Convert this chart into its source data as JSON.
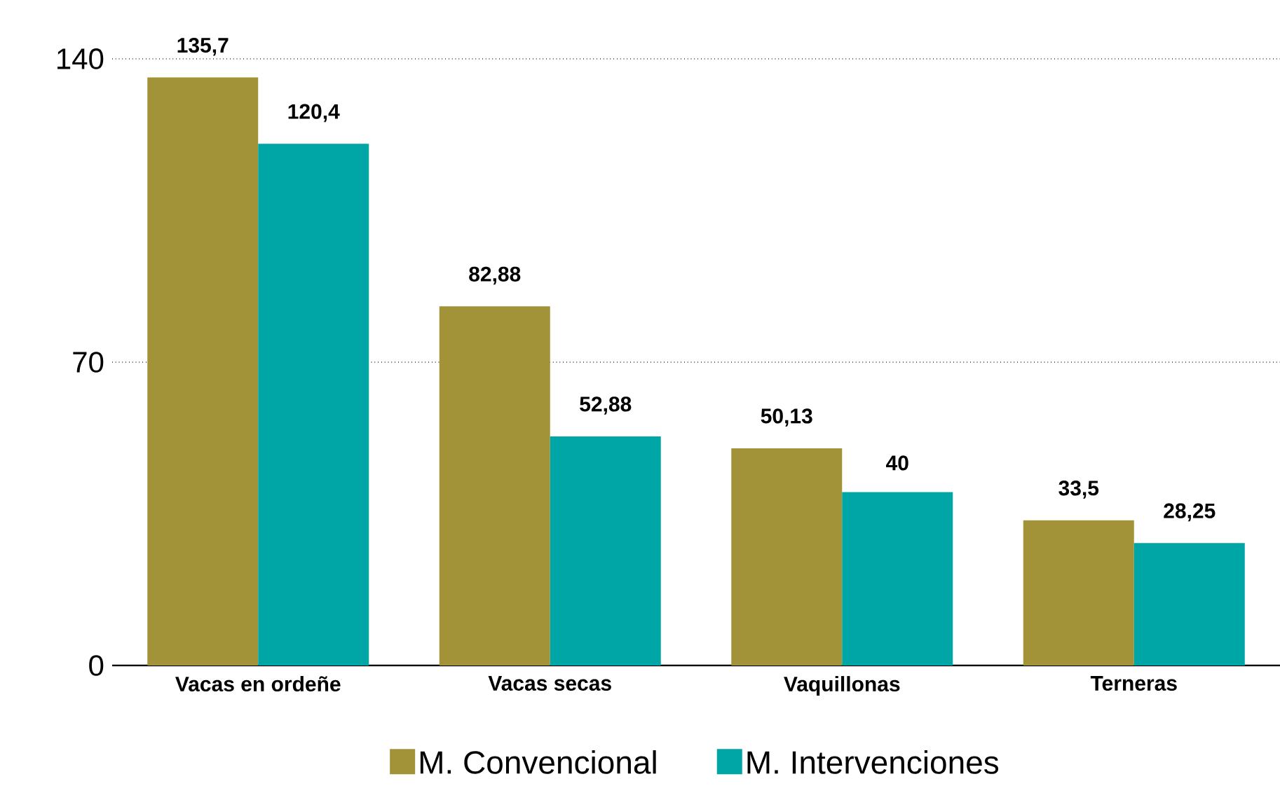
{
  "chart_data": {
    "type": "bar",
    "categories": [
      "Vacas en ordeñe",
      "Vacas secas",
      "Vaquillonas",
      "Terneras"
    ],
    "series": [
      {
        "name": "M. Convencional",
        "color": "#a39338",
        "values": [
          135.7,
          82.88,
          50.13,
          33.5
        ],
        "value_labels": [
          "135,7",
          "82,88",
          "50,13",
          "33,5"
        ]
      },
      {
        "name": "M. Intervenciones",
        "color": "#00a5a5",
        "values": [
          120.4,
          52.88,
          40,
          28.25
        ],
        "value_labels": [
          "120,4",
          "52,88",
          "40",
          "28,25"
        ]
      }
    ],
    "ylim": [
      0,
      140
    ],
    "yticks": [
      0,
      70,
      140
    ],
    "grid": "y",
    "legend": "bottom"
  }
}
